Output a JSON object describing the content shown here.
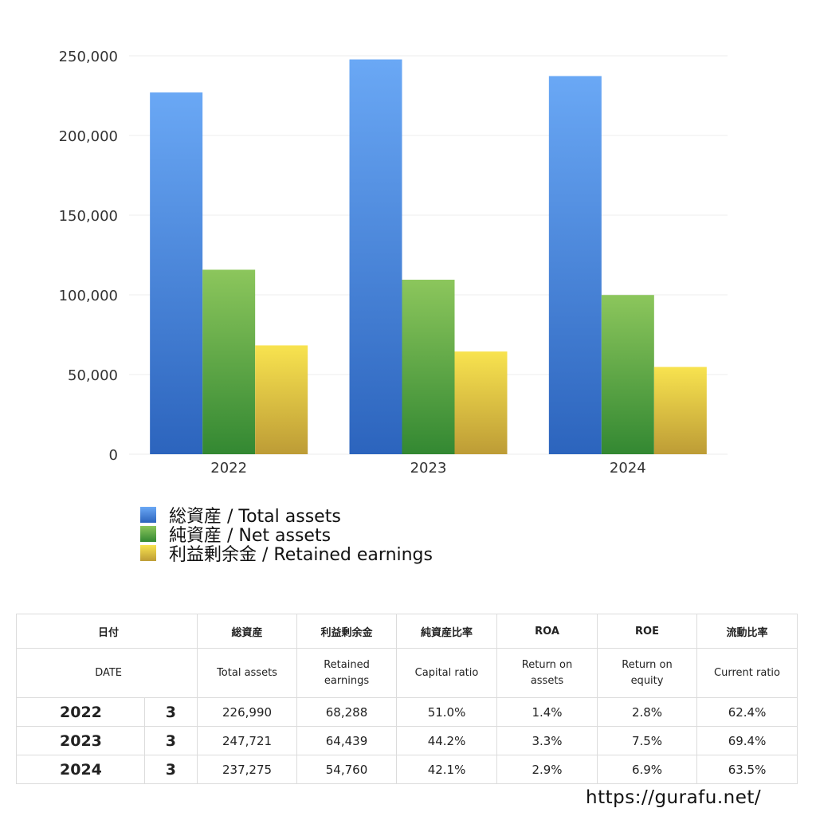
{
  "chart_data": {
    "type": "bar",
    "categories": [
      "2022",
      "2023",
      "2024"
    ],
    "series": [
      {
        "name": "総資産 / Total assets",
        "values": [
          226990,
          247721,
          237275
        ]
      },
      {
        "name": "純資産 / Net assets",
        "values": [
          115765,
          109493,
          99893
        ]
      },
      {
        "name": "利益剰余金 / Retained earnings",
        "values": [
          68288,
          64439,
          54760
        ]
      }
    ],
    "ylim": [
      0,
      250000
    ],
    "yticks": [
      "0",
      "50,000",
      "100,000",
      "150,000",
      "200,000",
      "250,000"
    ],
    "ytick_values": [
      0,
      50000,
      100000,
      150000,
      200000,
      250000
    ],
    "grid": true,
    "legend_position": "bottom-left",
    "colors": {
      "total_top": "#6aa8f5",
      "total_bottom": "#2c64bd",
      "net_top": "#8cc65c",
      "net_bottom": "#338832",
      "retained_top": "#f8e34f",
      "retained_bottom": "#bd9c36"
    }
  },
  "table": {
    "header_jp": {
      "date": "日付",
      "total": "総資産",
      "retained": "利益剰余金",
      "capital": "純資産比率",
      "roa": "ROA",
      "roe": "ROE",
      "current": "流動比率"
    },
    "header_en": {
      "date": "DATE",
      "total": "Total assets",
      "retained_1": "Retained",
      "retained_2": "earnings",
      "capital": "Capital ratio",
      "roa_1": "Return on",
      "roa_2": "assets",
      "roe_1": "Return on",
      "roe_2": "equity",
      "current": "Current ratio"
    },
    "rows": [
      {
        "year": "2022",
        "month": "3",
        "total": "226,990",
        "retained": "68,288",
        "capital": "51.0%",
        "roa": "1.4%",
        "roe": "2.8%",
        "current": "62.4%"
      },
      {
        "year": "2023",
        "month": "3",
        "total": "247,721",
        "retained": "64,439",
        "capital": "44.2%",
        "roa": "3.3%",
        "roe": "7.5%",
        "current": "69.4%"
      },
      {
        "year": "2024",
        "month": "3",
        "total": "237,275",
        "retained": "54,760",
        "capital": "42.1%",
        "roa": "2.9%",
        "roe": "6.9%",
        "current": "63.5%"
      }
    ]
  },
  "footer": {
    "url": "https://gurafu.net/"
  }
}
